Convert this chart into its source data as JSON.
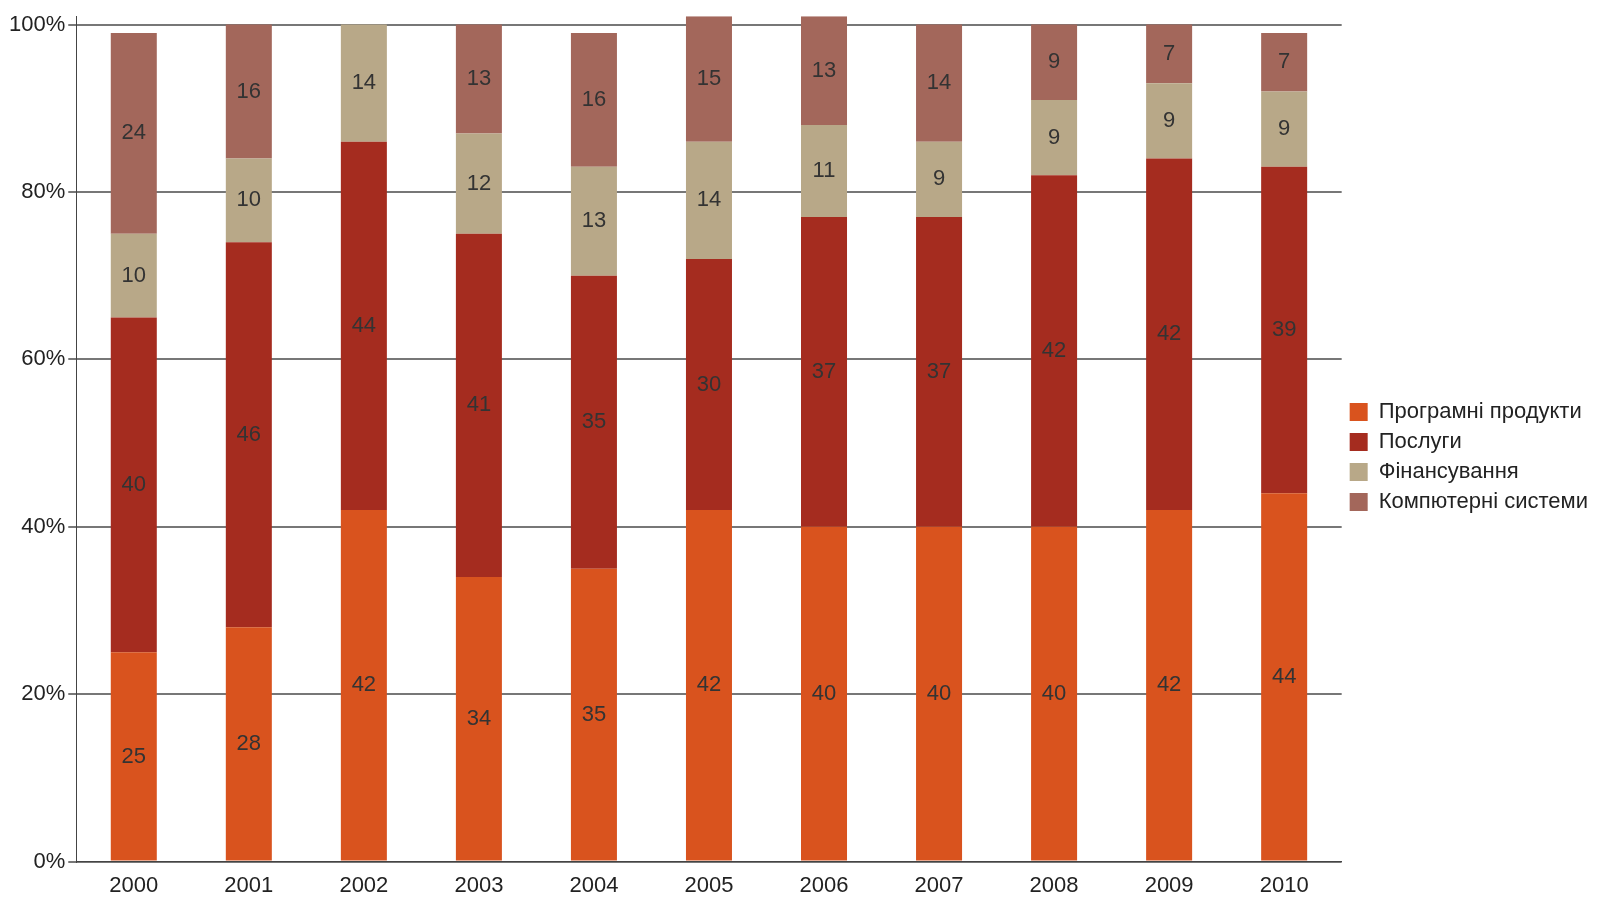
{
  "chart_data": {
    "type": "bar",
    "stacked": true,
    "categories": [
      "2000",
      "2001",
      "2002",
      "2003",
      "2004",
      "2005",
      "2006",
      "2007",
      "2008",
      "2009",
      "2010"
    ],
    "series": [
      {
        "name": "Програмні продукти",
        "color": "#d9531e",
        "values": [
          25,
          28,
          42,
          34,
          35,
          42,
          40,
          40,
          40,
          42,
          44
        ],
        "value_labels": [
          "25",
          "28",
          "42",
          "34",
          "35",
          "42",
          "40",
          "40",
          "40",
          "42",
          "44"
        ]
      },
      {
        "name": "Послуги",
        "color": "#a52c1f",
        "values": [
          40,
          46,
          44,
          41,
          35,
          30,
          37,
          37,
          42,
          42,
          39
        ],
        "value_labels": [
          "40",
          "46",
          "44",
          "41",
          "35",
          "30",
          "37",
          "37",
          "42",
          "42",
          "39"
        ]
      },
      {
        "name": "Фінансування",
        "color": "#b8a888",
        "values": [
          10,
          10,
          14,
          12,
          13,
          14,
          11,
          9,
          9,
          9,
          9
        ],
        "value_labels": [
          "10",
          "10",
          "14",
          "12",
          "13",
          "14",
          "11",
          "9",
          "9",
          "9",
          "9"
        ]
      },
      {
        "name": "Компютерні системи",
        "color": "#a3675b",
        "values": [
          24,
          16,
          null,
          13,
          16,
          15,
          13,
          14,
          9,
          7,
          7
        ],
        "value_labels": [
          "24",
          "16",
          null,
          "13",
          "16",
          "15",
          "13",
          "14",
          "9",
          "7",
          "7"
        ]
      }
    ],
    "ylim": [
      0,
      101
    ],
    "yticks": [
      {
        "value": 0,
        "label": "0%"
      },
      {
        "value": 20,
        "label": "20%"
      },
      {
        "value": 40,
        "label": "40%"
      },
      {
        "value": 60,
        "label": "60%"
      },
      {
        "value": 80,
        "label": "80%"
      },
      {
        "value": 100,
        "label": "100%"
      }
    ],
    "grid": "y",
    "legend": "right"
  }
}
